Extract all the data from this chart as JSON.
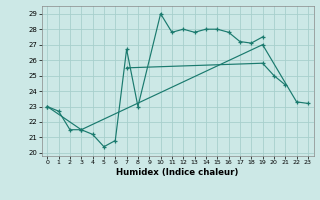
{
  "xlabel": "Humidex (Indice chaleur)",
  "background_color": "#cce8e6",
  "grid_color": "#a8cfcc",
  "line_color": "#1a7a6e",
  "xlim": [
    -0.5,
    23.5
  ],
  "ylim": [
    19.8,
    29.5
  ],
  "xticks": [
    0,
    1,
    2,
    3,
    4,
    5,
    6,
    7,
    8,
    9,
    10,
    11,
    12,
    13,
    14,
    15,
    16,
    17,
    18,
    19,
    20,
    21,
    22,
    23
  ],
  "yticks": [
    20,
    21,
    22,
    23,
    24,
    25,
    26,
    27,
    28,
    29
  ],
  "series": [
    {
      "x": [
        0,
        1,
        2,
        3,
        4,
        5,
        6,
        7,
        8,
        10,
        11,
        12,
        13,
        14,
        15,
        16,
        17,
        18,
        19
      ],
      "y": [
        23.0,
        22.7,
        21.5,
        21.5,
        21.2,
        20.4,
        20.8,
        26.7,
        23.0,
        29.0,
        27.8,
        28.0,
        27.8,
        28.0,
        28.0,
        27.8,
        27.2,
        27.1,
        27.5
      ]
    },
    {
      "x": [
        7,
        19,
        20,
        21
      ],
      "y": [
        25.5,
        25.8,
        25.0,
        24.4
      ]
    },
    {
      "x": [
        0,
        3,
        19,
        22,
        23
      ],
      "y": [
        23.0,
        21.5,
        27.0,
        23.3,
        23.2
      ]
    }
  ]
}
